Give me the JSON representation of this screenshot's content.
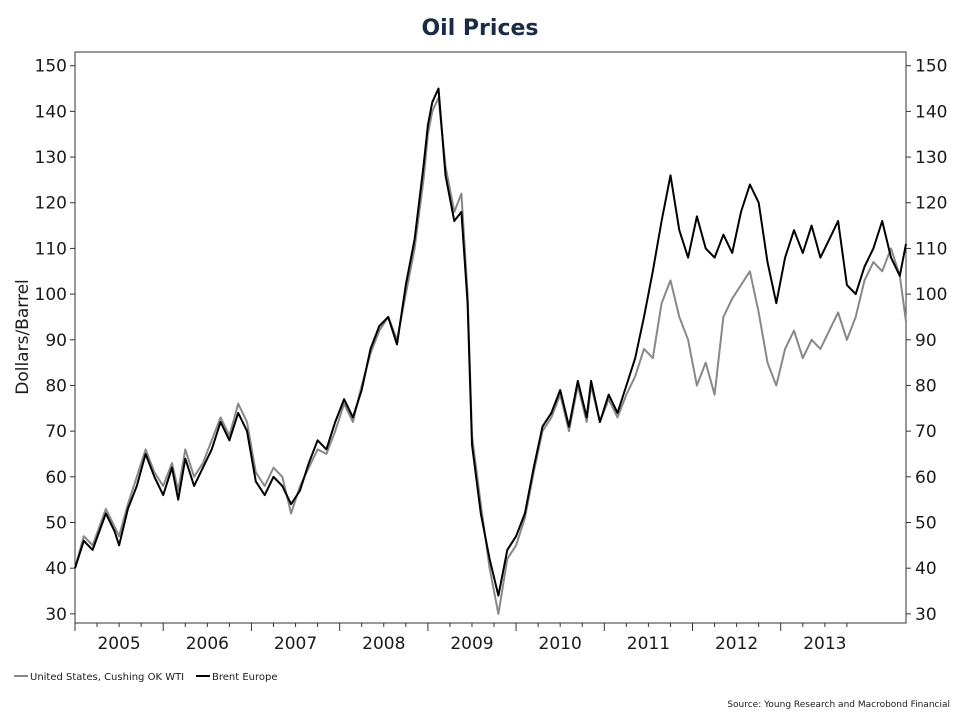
{
  "chart_data": {
    "type": "line",
    "title": "Oil Prices",
    "ylabel": "Dollars/Barrel",
    "ylabel_right": "",
    "xlabel": "",
    "ylim": [
      28,
      153
    ],
    "yticks": [
      30,
      40,
      50,
      60,
      70,
      80,
      90,
      100,
      110,
      120,
      130,
      140,
      150
    ],
    "xlim": [
      2004.5,
      2013.92
    ],
    "xtick_labels": [
      "2005",
      "2006",
      "2007",
      "2008",
      "2009",
      "2010",
      "2011",
      "2012",
      "2013"
    ],
    "grid": false,
    "legend_position": "bottom-left",
    "series": [
      {
        "name": "United States, Cushing OK WTI",
        "color": "#888888",
        "x": [
          2004.5,
          2004.6,
          2004.7,
          2004.85,
          2004.95,
          2005.0,
          2005.1,
          2005.2,
          2005.3,
          2005.4,
          2005.5,
          2005.6,
          2005.67,
          2005.75,
          2005.85,
          2005.95,
          2006.05,
          2006.15,
          2006.25,
          2006.35,
          2006.45,
          2006.55,
          2006.65,
          2006.75,
          2006.85,
          2006.95,
          2007.05,
          2007.15,
          2007.25,
          2007.35,
          2007.45,
          2007.55,
          2007.65,
          2007.75,
          2007.85,
          2007.95,
          2008.05,
          2008.15,
          2008.25,
          2008.35,
          2008.45,
          2008.5,
          2008.55,
          2008.62,
          2008.7,
          2008.8,
          2008.88,
          2008.95,
          2009.0,
          2009.1,
          2009.2,
          2009.3,
          2009.4,
          2009.5,
          2009.6,
          2009.7,
          2009.8,
          2009.9,
          2010.0,
          2010.1,
          2010.2,
          2010.3,
          2010.35,
          2010.45,
          2010.55,
          2010.65,
          2010.75,
          2010.85,
          2010.95,
          2011.05,
          2011.15,
          2011.25,
          2011.35,
          2011.45,
          2011.55,
          2011.65,
          2011.75,
          2011.85,
          2011.95,
          2012.05,
          2012.15,
          2012.25,
          2012.35,
          2012.45,
          2012.55,
          2012.65,
          2012.75,
          2012.85,
          2012.95,
          2013.05,
          2013.15,
          2013.25,
          2013.35,
          2013.45,
          2013.55,
          2013.65,
          2013.75,
          2013.85,
          2013.92
        ],
        "values": [
          40,
          47,
          45,
          53,
          49,
          47,
          54,
          60,
          66,
          61,
          58,
          63,
          57,
          66,
          60,
          63,
          68,
          73,
          69,
          76,
          72,
          61,
          58,
          62,
          60,
          52,
          58,
          62,
          66,
          65,
          70,
          76,
          72,
          80,
          87,
          92,
          95,
          90,
          100,
          110,
          125,
          135,
          140,
          143,
          128,
          118,
          122,
          100,
          69,
          54,
          40,
          30,
          42,
          45,
          51,
          61,
          70,
          73,
          78,
          70,
          80,
          72,
          80,
          72,
          77,
          73,
          78,
          82,
          88,
          86,
          98,
          103,
          95,
          90,
          80,
          85,
          78,
          95,
          99,
          102,
          105,
          96,
          85,
          80,
          88,
          92,
          86,
          90,
          88,
          92,
          96,
          90,
          95,
          103,
          107,
          105,
          110,
          104,
          94
        ]
      },
      {
        "name": "Brent Europe",
        "color": "#000000",
        "x": [
          2004.5,
          2004.6,
          2004.7,
          2004.85,
          2004.95,
          2005.0,
          2005.1,
          2005.2,
          2005.3,
          2005.4,
          2005.5,
          2005.6,
          2005.67,
          2005.75,
          2005.85,
          2005.95,
          2006.05,
          2006.15,
          2006.25,
          2006.35,
          2006.45,
          2006.55,
          2006.65,
          2006.75,
          2006.85,
          2006.95,
          2007.05,
          2007.15,
          2007.25,
          2007.35,
          2007.45,
          2007.55,
          2007.65,
          2007.75,
          2007.85,
          2007.95,
          2008.05,
          2008.15,
          2008.25,
          2008.35,
          2008.45,
          2008.5,
          2008.55,
          2008.62,
          2008.7,
          2008.8,
          2008.88,
          2008.95,
          2009.0,
          2009.1,
          2009.2,
          2009.3,
          2009.4,
          2009.5,
          2009.6,
          2009.7,
          2009.8,
          2009.9,
          2010.0,
          2010.1,
          2010.2,
          2010.3,
          2010.35,
          2010.45,
          2010.55,
          2010.65,
          2010.75,
          2010.85,
          2010.95,
          2011.05,
          2011.15,
          2011.25,
          2011.35,
          2011.45,
          2011.55,
          2011.65,
          2011.75,
          2011.85,
          2011.95,
          2012.05,
          2012.15,
          2012.25,
          2012.35,
          2012.45,
          2012.55,
          2012.65,
          2012.75,
          2012.85,
          2012.95,
          2013.05,
          2013.15,
          2013.25,
          2013.35,
          2013.45,
          2013.55,
          2013.65,
          2013.75,
          2013.85,
          2013.92
        ],
        "values": [
          40,
          46,
          44,
          52,
          48,
          45,
          53,
          58,
          65,
          60,
          56,
          62,
          55,
          64,
          58,
          62,
          66,
          72,
          68,
          74,
          70,
          59,
          56,
          60,
          58,
          54,
          57,
          63,
          68,
          66,
          72,
          77,
          73,
          79,
          88,
          93,
          95,
          89,
          102,
          112,
          128,
          137,
          142,
          145,
          126,
          116,
          118,
          98,
          67,
          52,
          42,
          34,
          44,
          47,
          52,
          62,
          71,
          74,
          79,
          71,
          81,
          73,
          81,
          72,
          78,
          74,
          80,
          86,
          95,
          105,
          116,
          126,
          114,
          108,
          117,
          110,
          108,
          113,
          109,
          118,
          124,
          120,
          107,
          98,
          108,
          114,
          109,
          115,
          108,
          112,
          116,
          102,
          100,
          106,
          110,
          116,
          108,
          104,
          111
        ]
      }
    ],
    "source": "Source: Young Research and Macrobond Financial"
  }
}
